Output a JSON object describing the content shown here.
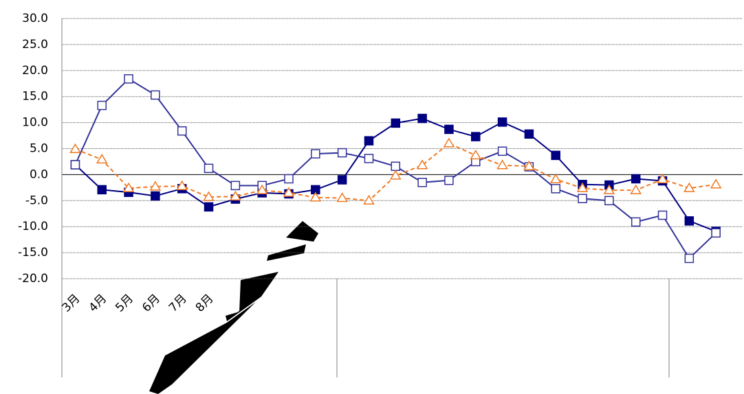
{
  "chart_data": {
    "type": "line",
    "categories": [
      "3月",
      "4月",
      "5月",
      "6月",
      "7月",
      "8月",
      null,
      null,
      null,
      null,
      null,
      null,
      null,
      null,
      null,
      null,
      null,
      null,
      null,
      null,
      null,
      null,
      null,
      null,
      null
    ],
    "series": [
      {
        "color": "#000080",
        "marker": "filled-square",
        "dash": false,
        "values": [
          1.9,
          -2.9,
          -3.4,
          -4.1,
          -2.7,
          -6.2,
          -4.7,
          -3.5,
          -3.7,
          -2.9,
          -1.0,
          6.5,
          9.9,
          10.8,
          8.7,
          7.3,
          10.1,
          7.8,
          3.7,
          -1.9,
          -2.0,
          -0.8,
          -1.2,
          -8.9,
          -10.9
        ]
      },
      {
        "color": "#333399",
        "marker": "open-square",
        "dash": false,
        "values": [
          1.9,
          13.3,
          18.4,
          15.3,
          8.4,
          1.2,
          -2.1,
          -2.1,
          -0.8,
          4.0,
          4.2,
          3.1,
          1.6,
          -1.5,
          -1.1,
          2.5,
          4.5,
          1.5,
          -2.7,
          -4.6,
          -5.0,
          -9.1,
          -7.8,
          -16.1,
          -11.2
        ]
      },
      {
        "color": "#f07820",
        "marker": "open-triangle",
        "dash": true,
        "values": [
          4.9,
          2.9,
          -2.6,
          -2.3,
          -2.2,
          -4.3,
          -4.2,
          -3.0,
          -3.5,
          -4.4,
          -4.5,
          -5.0,
          -0.2,
          1.8,
          6.0,
          3.7,
          1.8,
          1.6,
          -0.9,
          -2.6,
          -3.0,
          -3.0,
          -0.9,
          -2.6,
          -1.9
        ]
      }
    ],
    "ylim": [
      -20,
      30
    ],
    "yticks": [
      {
        "value": -20,
        "label": "-20.0"
      },
      {
        "value": -15,
        "label": "-15.0"
      },
      {
        "value": -10,
        "label": "-10.0"
      },
      {
        "value": -5,
        "label": "-5.0"
      },
      {
        "value": 0,
        "label": "0.0"
      },
      {
        "value": 5,
        "label": "5.0"
      },
      {
        "value": 10,
        "label": "10.0"
      },
      {
        "value": 15,
        "label": "15.0"
      },
      {
        "value": 20,
        "label": "20.0"
      },
      {
        "value": 25,
        "label": "25.0"
      },
      {
        "value": 30,
        "label": "30.0"
      }
    ],
    "grid": true
  }
}
